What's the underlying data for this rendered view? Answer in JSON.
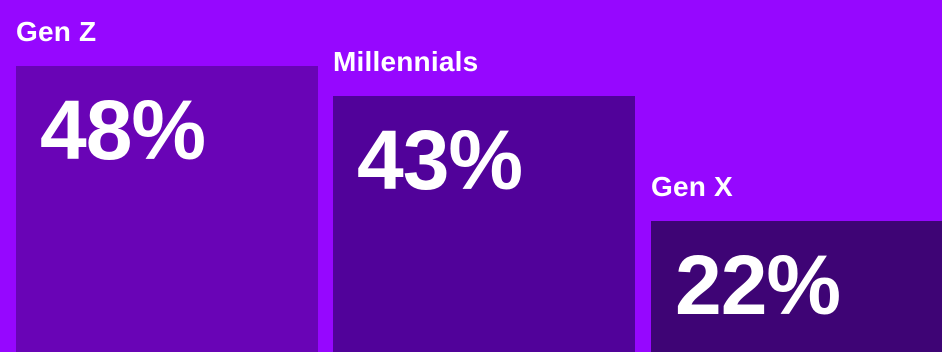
{
  "chart_data": {
    "type": "bar",
    "categories": [
      "Gen Z",
      "Millennials",
      "Gen X"
    ],
    "values": [
      48,
      43,
      22
    ],
    "value_labels": [
      "48%",
      "43%",
      "22%"
    ],
    "unit": "%",
    "colors": {
      "background": "#9607FF",
      "bars": [
        "#6904B6",
        "#51029A",
        "#3E0475"
      ],
      "text": "#FFFFFF"
    }
  }
}
